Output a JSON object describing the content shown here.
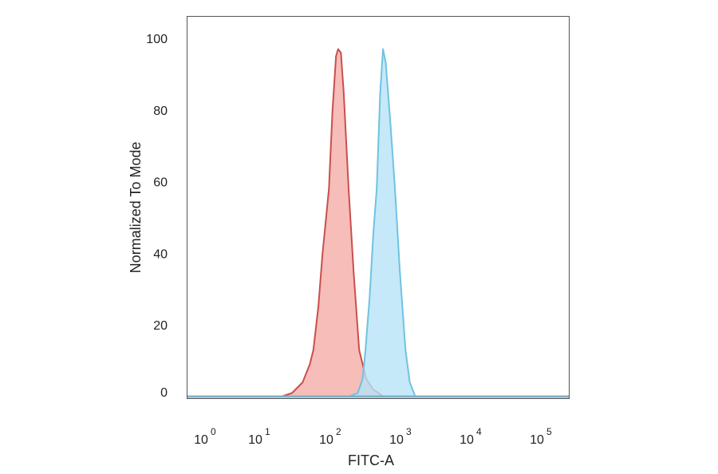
{
  "chart_data": {
    "type": "area",
    "title": "",
    "xlabel": "FITC-A",
    "ylabel": "Normalized To Mode",
    "x_scale": "log",
    "xlim_log10": [
      -0.3,
      5.35
    ],
    "ylim": [
      0,
      100
    ],
    "x_ticks": [
      {
        "base": "10",
        "exp": "0",
        "log10": 0
      },
      {
        "base": "10",
        "exp": "1",
        "log10": 1
      },
      {
        "base": "10",
        "exp": "2",
        "log10": 2
      },
      {
        "base": "10",
        "exp": "3",
        "log10": 3
      },
      {
        "base": "10",
        "exp": "4",
        "log10": 4
      },
      {
        "base": "10",
        "exp": "5",
        "log10": 5
      }
    ],
    "y_ticks": [
      "0",
      "20",
      "40",
      "60",
      "80",
      "100"
    ],
    "grid": false,
    "series": [
      {
        "color_fill": "#f4aca8",
        "color_line": "#c9504c",
        "log10_x": [
          1.3,
          1.45,
          1.6,
          1.7,
          1.75,
          1.82,
          1.88,
          1.92,
          1.97,
          2.02,
          2.07,
          2.1,
          2.14,
          2.18,
          2.25,
          2.32,
          2.4,
          2.5,
          2.6,
          2.75
        ],
        "y": [
          0,
          1,
          4,
          9,
          13,
          25,
          40,
          48,
          58,
          80,
          95,
          97,
          96,
          85,
          58,
          35,
          13,
          5,
          2,
          0
        ]
      },
      {
        "color_fill": "#b6e3f8",
        "color_line": "#6ec3e0",
        "log10_x": [
          2.25,
          2.38,
          2.45,
          2.49,
          2.55,
          2.6,
          2.65,
          2.7,
          2.74,
          2.78,
          2.85,
          2.91,
          2.98,
          3.06,
          3.12,
          3.2
        ],
        "y": [
          0,
          1,
          5,
          13,
          28,
          45,
          58,
          85,
          97,
          93,
          75,
          58,
          35,
          13,
          4,
          0
        ]
      }
    ]
  }
}
